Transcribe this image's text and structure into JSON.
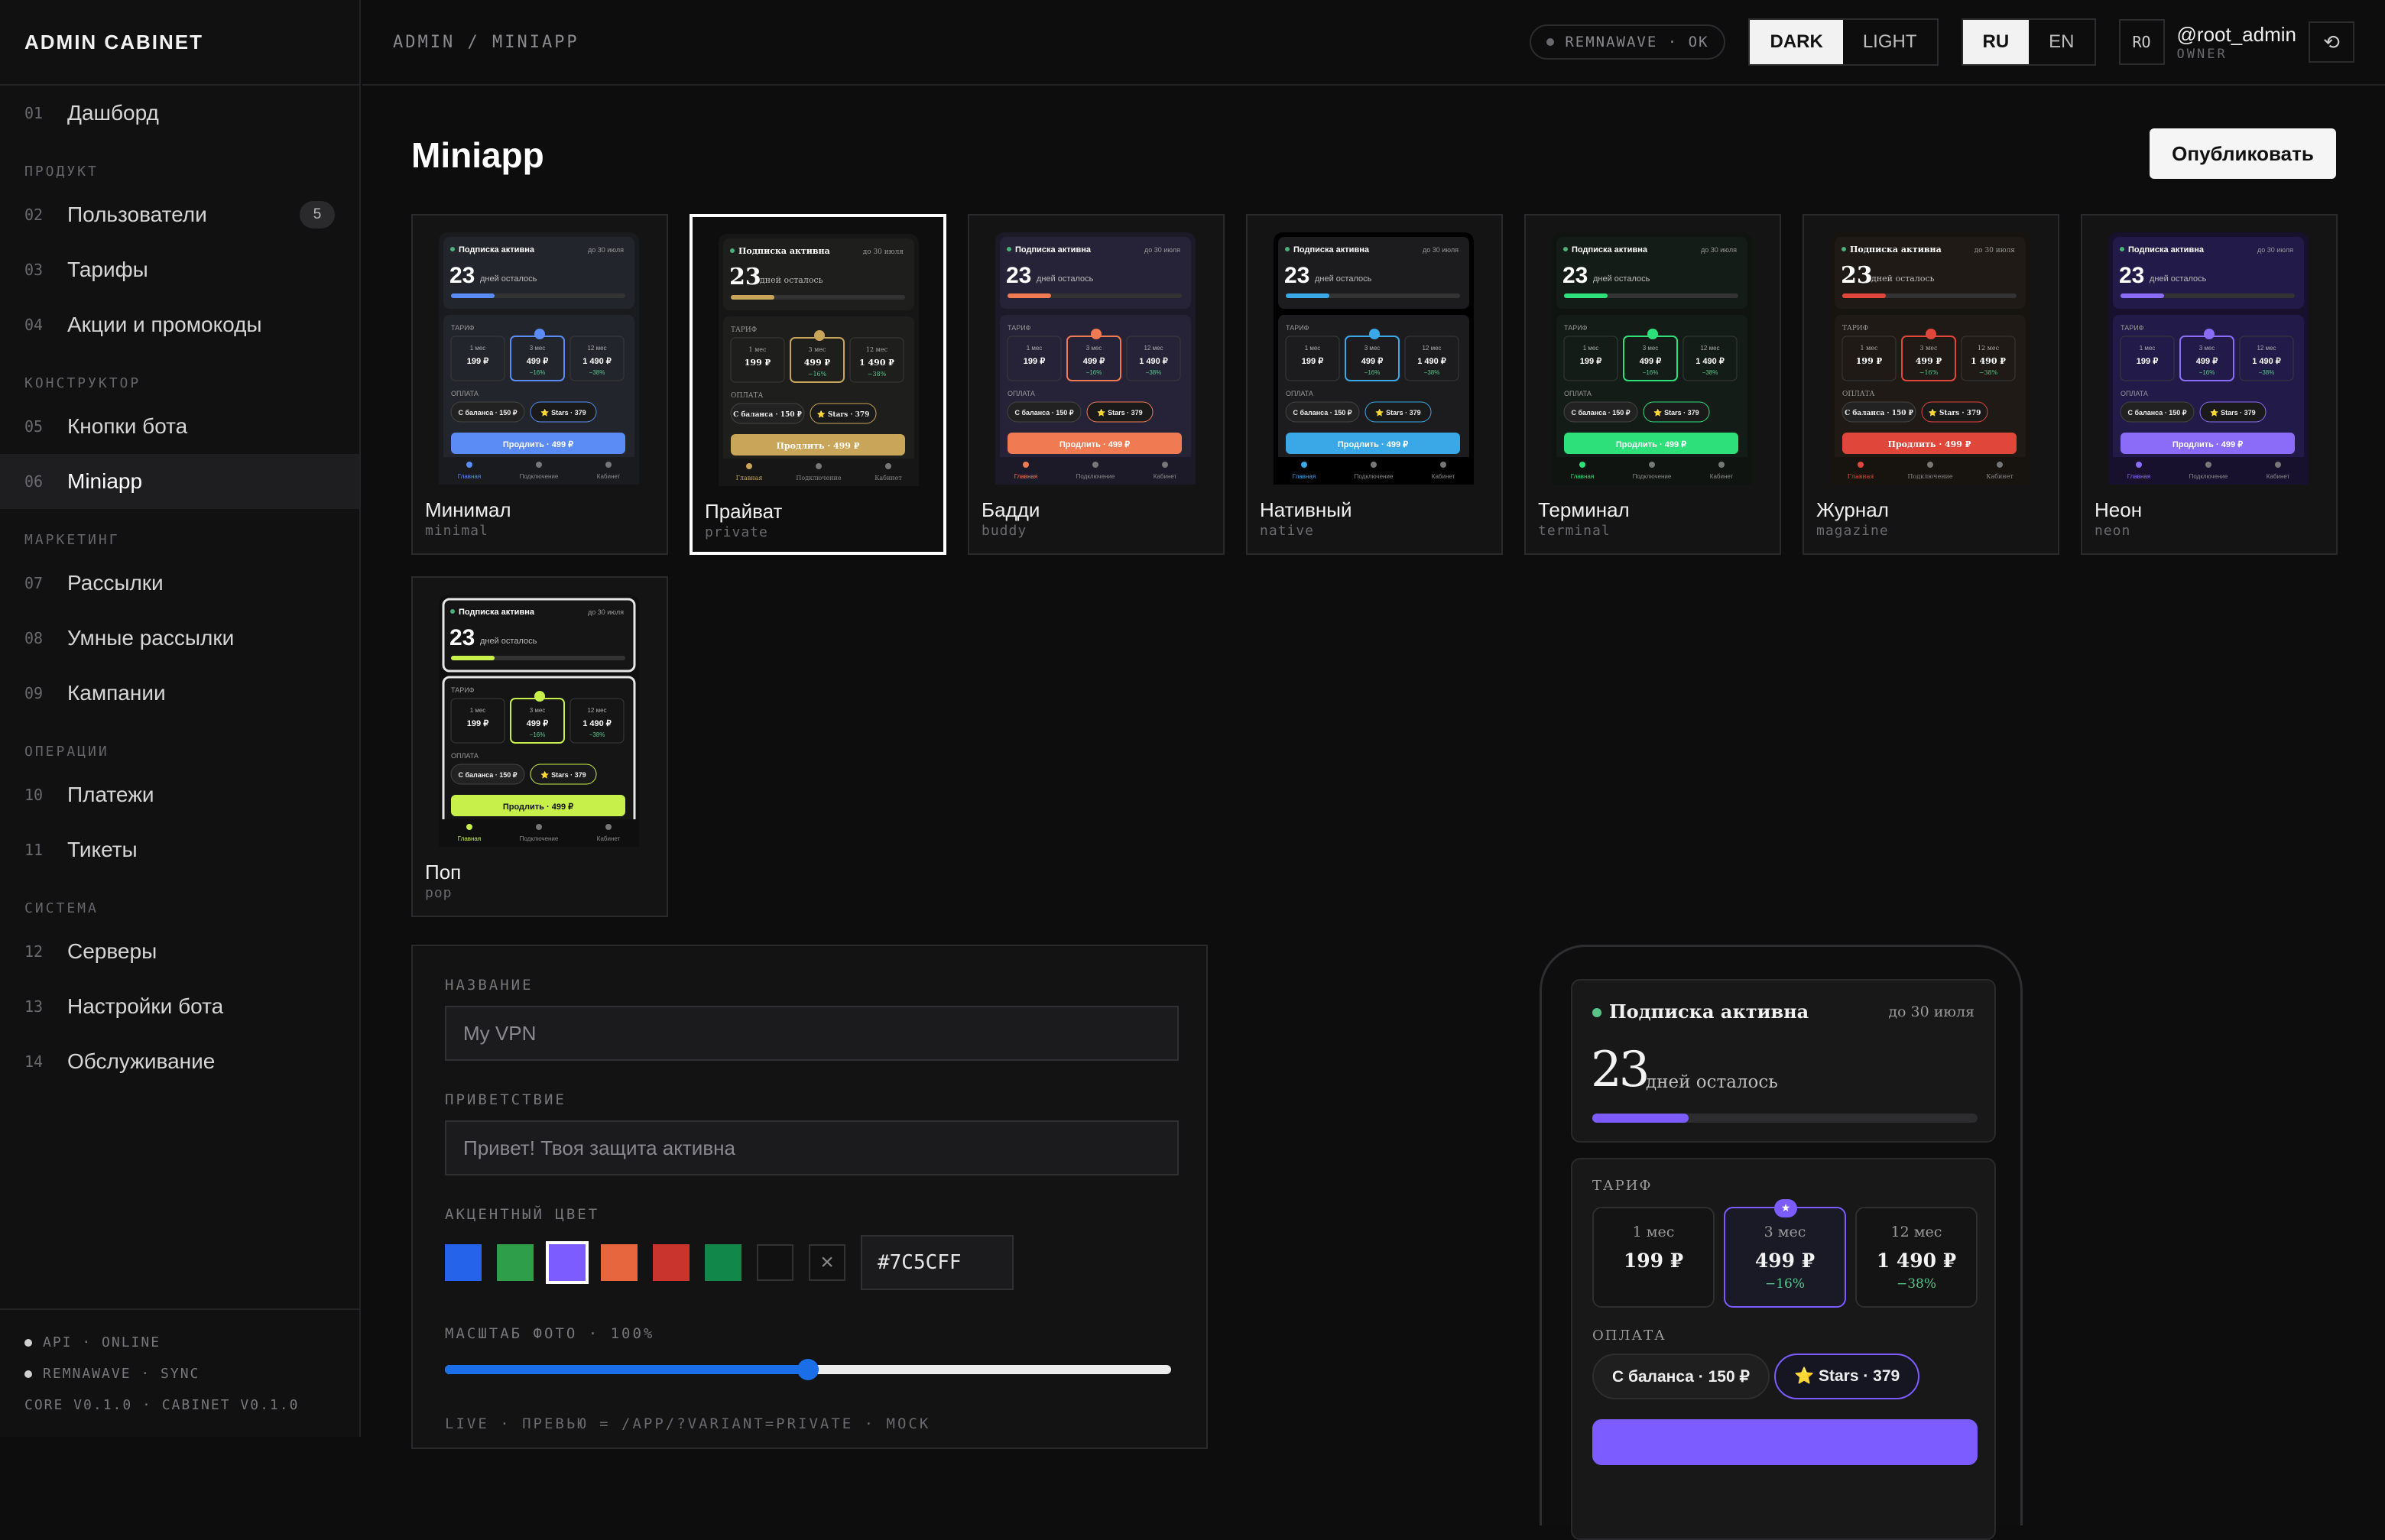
{
  "app": {
    "brand": "ADMIN CABINET"
  },
  "sidebar": {
    "top_items": [
      {
        "num": "01",
        "label": "Дашборд"
      }
    ],
    "sections": [
      {
        "title": "ПРОДУКТ",
        "items": [
          {
            "num": "02",
            "label": "Пользователи",
            "badge": "5"
          },
          {
            "num": "03",
            "label": "Тарифы"
          },
          {
            "num": "04",
            "label": "Акции и промокоды"
          }
        ]
      },
      {
        "title": "КОНСТРУКТОР",
        "items": [
          {
            "num": "05",
            "label": "Кнопки бота"
          },
          {
            "num": "06",
            "label": "Miniapp",
            "active": true
          }
        ]
      },
      {
        "title": "МАРКЕТИНГ",
        "items": [
          {
            "num": "07",
            "label": "Рассылки"
          },
          {
            "num": "08",
            "label": "Умные рассылки"
          },
          {
            "num": "09",
            "label": "Кампании"
          }
        ]
      },
      {
        "title": "ОПЕРАЦИИ",
        "items": [
          {
            "num": "10",
            "label": "Платежи"
          },
          {
            "num": "11",
            "label": "Тикеты"
          }
        ]
      },
      {
        "title": "СИСТЕМА",
        "items": [
          {
            "num": "12",
            "label": "Серверы"
          },
          {
            "num": "13",
            "label": "Настройки бота"
          },
          {
            "num": "14",
            "label": "Обслуживание"
          }
        ]
      }
    ],
    "footer": {
      "api": "API · ONLINE",
      "remnawave": "REMNAWAVE · SYNC",
      "version": "CORE V0.1.0 · CABINET V0.1.0"
    }
  },
  "topbar": {
    "breadcrumb": "ADMIN / MINIAPP",
    "status": "REMNAWAVE · OK",
    "theme": {
      "dark": "DARK",
      "light": "LIGHT"
    },
    "lang": {
      "ru": "RU",
      "en": "EN"
    },
    "avatar": "RO",
    "user": "@root_admin",
    "role": "OWNER"
  },
  "page": {
    "title": "Miniapp",
    "publish_label": "Опубликовать"
  },
  "preview_text": {
    "sub_active": "Подписка активна",
    "until": "до 30 июля",
    "days": "23",
    "days_left": "дней осталось",
    "tariff": "ТАРИФ",
    "payment": "ОПЛАТА",
    "plans": [
      {
        "t": "1 мес",
        "p": "199 ₽",
        "d": ""
      },
      {
        "t": "3 мес",
        "p": "499 ₽",
        "d": "−16%"
      },
      {
        "t": "12 мес",
        "p": "1 490 ₽",
        "d": "−38%"
      }
    ],
    "balance": "С баланса · 150 ₽",
    "stars": "⭐ Stars · 379",
    "renew": "Продлить · 499 ₽",
    "nav": [
      "Главная",
      "Подключение",
      "Кабинет"
    ]
  },
  "variants": [
    {
      "name": "Минимал",
      "slug": "minimal",
      "bg": "#1a1b1f",
      "panel": "#22252c",
      "accent": "#5b8cf5",
      "serif": false
    },
    {
      "name": "Прайват",
      "slug": "private",
      "bg": "#161616",
      "panel": "#1e1e1c",
      "accent": "#c9a55a",
      "serif": true,
      "selected": true
    },
    {
      "name": "Бадди",
      "slug": "buddy",
      "bg": "#1c1a28",
      "panel": "#262338",
      "accent": "#f07a52",
      "serif": false
    },
    {
      "name": "Нативный",
      "slug": "native",
      "bg": "#000000",
      "panel": "#1c1c1e",
      "accent": "#3aa7e6",
      "serif": false
    },
    {
      "name": "Терминал",
      "slug": "terminal",
      "bg": "#0f1411",
      "panel": "#141c17",
      "accent": "#2ee07a",
      "serif": false
    },
    {
      "name": "Журнал",
      "slug": "magazine",
      "bg": "#17130f",
      "panel": "#1f1a15",
      "accent": "#e0473a",
      "serif": true
    },
    {
      "name": "Неон",
      "slug": "neon",
      "bg": "#17112e",
      "panel": "#221a48",
      "accent": "#8b6cf8",
      "serif": false
    },
    {
      "name": "Поп",
      "slug": "pop",
      "bg": "#0f0f0f",
      "panel": "#151515",
      "accent": "#c8f04a",
      "serif": false
    }
  ],
  "form": {
    "name_label": "НАЗВАНИЕ",
    "name_placeholder": "My VPN",
    "greeting_label": "ПРИВЕТСТВИЕ",
    "greeting_placeholder": "Привет! Твоя защита активна",
    "accent_label": "АКЦЕНТНЫЙ ЦВЕТ",
    "swatches": [
      "#2563eb",
      "#2e9e4a",
      "#7c5cff",
      "#e8663d",
      "#c9342c",
      "#12874a",
      "#111111"
    ],
    "selected_swatch": 2,
    "hex_value": "#7C5CFF",
    "scale_label": "МАСШТАБ ФОТО · 100%",
    "scale_fraction": 0.5,
    "live_text": "LIVE · ПРЕВЬЮ = /APP/?VARIANT=PRIVATE · MOCK"
  }
}
